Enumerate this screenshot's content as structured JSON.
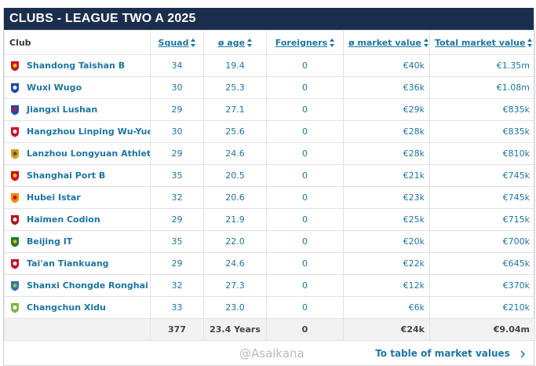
{
  "header": {
    "title": "CLUBS - LEAGUE TWO A 2025"
  },
  "table": {
    "columns": [
      "Club",
      "Squad",
      "ø age",
      "Foreigners",
      "ø market value",
      "Total market value"
    ],
    "rows": [
      [
        "Shandong Taishan B",
        "34",
        "19.4",
        "0",
        "€40k",
        "€1.35m"
      ],
      [
        "Wuxi Wugo",
        "30",
        "25.3",
        "0",
        "€36k",
        "€1.08m"
      ],
      [
        "Jiangxi Lushan",
        "29",
        "27.1",
        "0",
        "€29k",
        "€835k"
      ],
      [
        "Hangzhou Linping Wu-Yue",
        "30",
        "25.6",
        "0",
        "€28k",
        "€835k"
      ],
      [
        "Lanzhou Longyuan Athletic",
        "29",
        "24.6",
        "0",
        "€28k",
        "€810k"
      ],
      [
        "Shanghai Port B",
        "35",
        "20.5",
        "0",
        "€21k",
        "€745k"
      ],
      [
        "Hubei Istar",
        "32",
        "20.6",
        "0",
        "€23k",
        "€745k"
      ],
      [
        "Haimen Codion",
        "29",
        "21.9",
        "0",
        "€25k",
        "€715k"
      ],
      [
        "Beijing IT",
        "35",
        "22.0",
        "0",
        "€20k",
        "€700k"
      ],
      [
        "Tai'an Tiankuang",
        "29",
        "24.6",
        "0",
        "€22k",
        "€645k"
      ],
      [
        "Shanxi Chongde Ronghai",
        "32",
        "27.3",
        "0",
        "€12k",
        "€370k"
      ],
      [
        "Changchun Xidu",
        "33",
        "23.0",
        "0",
        "€6k",
        "€210k"
      ]
    ],
    "totals": [
      "377",
      "23.4 Years",
      "0",
      "€24k",
      "€9.04m"
    ]
  },
  "link": "To table of market values",
  "watermark": "@Asaikana"
}
